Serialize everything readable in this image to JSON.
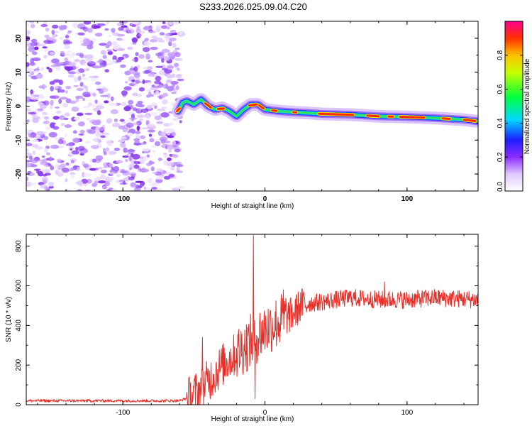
{
  "title": "S233.2026.025.09.04.C20",
  "chart_data": [
    {
      "type": "heatmap",
      "name": "spectrogram",
      "xlabel": "Height of straight line (km)",
      "ylabel": "Frequency (Hz)",
      "xlim": [
        -168,
        150
      ],
      "ylim": [
        -25,
        25
      ],
      "xticks": [
        -100,
        0,
        100
      ],
      "xtick_labels": [
        "-100",
        "0",
        "100"
      ],
      "yticks": [
        20,
        10,
        0,
        -10,
        -20
      ],
      "ytick_labels": [
        "20",
        "10",
        "0",
        "-10",
        "-20"
      ],
      "ridge": {
        "x": [
          -61,
          -58,
          -55,
          -50,
          -45,
          -40,
          -35,
          -30,
          -25,
          -20,
          -15,
          -10,
          -5,
          0,
          10,
          20,
          30,
          40,
          60,
          80,
          100,
          120,
          140,
          150
        ],
        "y": [
          -1.5,
          1,
          1.5,
          0.5,
          2,
          0,
          -1,
          -0.5,
          -1.5,
          -3,
          -1,
          0.5,
          0.5,
          -1,
          -1.5,
          -1.8,
          -2,
          -2.3,
          -2.5,
          -3,
          -3.2,
          -3.5,
          -4,
          -4.5
        ]
      },
      "noise_region_x": [
        -168,
        -62
      ]
    },
    {
      "type": "colorbar",
      "label": "Normalized spectral amplitude",
      "range": [
        0,
        1
      ],
      "ticks": [
        0.0,
        0.2,
        0.4,
        0.6,
        0.8
      ],
      "tick_labels": [
        "0.0",
        "0.2",
        "0.4",
        "0.6",
        "0.8"
      ]
    },
    {
      "type": "line",
      "name": "snr",
      "xlabel": "Height of straight line (km)",
      "ylabel": "SNR (10 * v/v)",
      "xlim": [
        -168,
        150
      ],
      "ylim": [
        0,
        860
      ],
      "xticks": [
        -100,
        0,
        100
      ],
      "xtick_labels": [
        "-100",
        "0",
        "100"
      ],
      "yticks": [
        0,
        200,
        400,
        600,
        800
      ],
      "ytick_labels": [
        "0",
        "200",
        "400",
        "600",
        "800"
      ],
      "color": "#e8302a",
      "trend": {
        "x": [
          -168,
          -60,
          -52,
          -45,
          -40,
          -30,
          -20,
          -10,
          0,
          10,
          20,
          25,
          30,
          40,
          60,
          80,
          100,
          120,
          150
        ],
        "y": [
          20,
          20,
          40,
          80,
          120,
          200,
          260,
          320,
          380,
          420,
          460,
          500,
          510,
          520,
          540,
          530,
          530,
          540,
          530
        ]
      },
      "spikes": [
        {
          "x": -44,
          "y": 340
        },
        {
          "x": -8,
          "y": 855
        },
        {
          "x": -7,
          "y": 30
        },
        {
          "x": 13,
          "y": 580
        },
        {
          "x": 84,
          "y": 620
        }
      ]
    }
  ]
}
